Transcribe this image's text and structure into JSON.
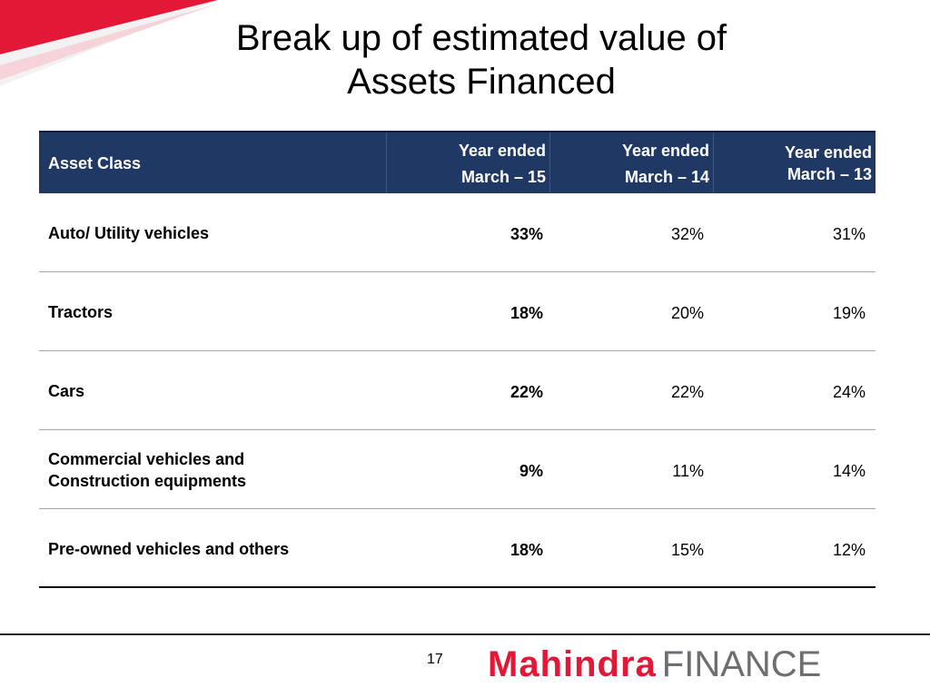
{
  "title": {
    "line1": "Break up of estimated value of",
    "line2": "Assets Financed"
  },
  "table": {
    "header": {
      "asset_class": "Asset Class",
      "col1": {
        "line1": "Year ended",
        "line2": "March – 15"
      },
      "col2": {
        "line1": "Year ended",
        "line2": "March – 14"
      },
      "col3": {
        "line1": "Year ended",
        "line2": "March – 13"
      }
    },
    "rows": [
      {
        "name": "Auto/ Utility vehicles",
        "fy15": "33%",
        "fy14": "32%",
        "fy13": "31%"
      },
      {
        "name": "Tractors",
        "fy15": "18%",
        "fy14": "20%",
        "fy13": "19%"
      },
      {
        "name": "Cars",
        "fy15": "22%",
        "fy14": "22%",
        "fy13": "24%"
      },
      {
        "name_line1": "Commercial vehicles and",
        "name_line2": "Construction equipments",
        "fy15": "9%",
        "fy14": "11%",
        "fy13": "14%"
      },
      {
        "name": "Pre-owned vehicles and others",
        "fy15": "18%",
        "fy14": "15%",
        "fy13": "12%"
      }
    ]
  },
  "footer": {
    "page_number": "17",
    "logo_word1": "Mahindra",
    "logo_word2": "FINANCE"
  },
  "colors": {
    "header_bg": "#1f3864",
    "brand_red": "#e31837",
    "logo_gray": "#6d6e71"
  }
}
